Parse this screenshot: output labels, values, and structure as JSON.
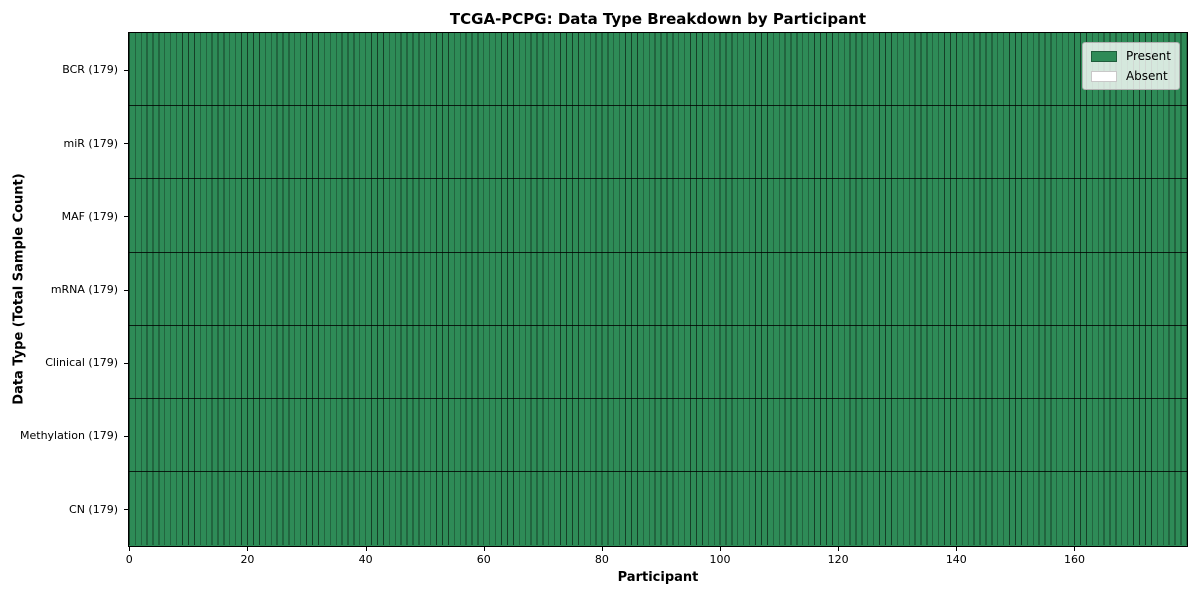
{
  "chart_data": {
    "type": "heatmap",
    "title": "TCGA-PCPG: Data Type Breakdown by Participant",
    "xlabel": "Participant",
    "ylabel": "Data Type (Total Sample Count)",
    "n_participants": 179,
    "x_range": [
      0,
      179
    ],
    "x_ticks": [
      0,
      20,
      40,
      60,
      80,
      100,
      120,
      140,
      160
    ],
    "rows": [
      {
        "label": "BCR (179)",
        "present_count": 179,
        "absent_count": 0
      },
      {
        "label": "miR (179)",
        "present_count": 179,
        "absent_count": 0
      },
      {
        "label": "MAF (179)",
        "present_count": 179,
        "absent_count": 0
      },
      {
        "label": "mRNA (179)",
        "present_count": 179,
        "absent_count": 0
      },
      {
        "label": "Clinical (179)",
        "present_count": 179,
        "absent_count": 0
      },
      {
        "label": "Methylation (179)",
        "present_count": 179,
        "absent_count": 0
      },
      {
        "label": "CN (179)",
        "present_count": 179,
        "absent_count": 0
      }
    ],
    "legend": {
      "position": "upper right",
      "items": [
        {
          "label": "Present",
          "color": "#2e8b57"
        },
        {
          "label": "Absent",
          "color": "#ffffff"
        }
      ]
    },
    "colors": {
      "present": "#2e8b57",
      "absent": "#ffffff",
      "cell_edge": "rgba(0,0,0,0.55)",
      "row_separator": "rgba(0,0,0,0.8)"
    }
  }
}
